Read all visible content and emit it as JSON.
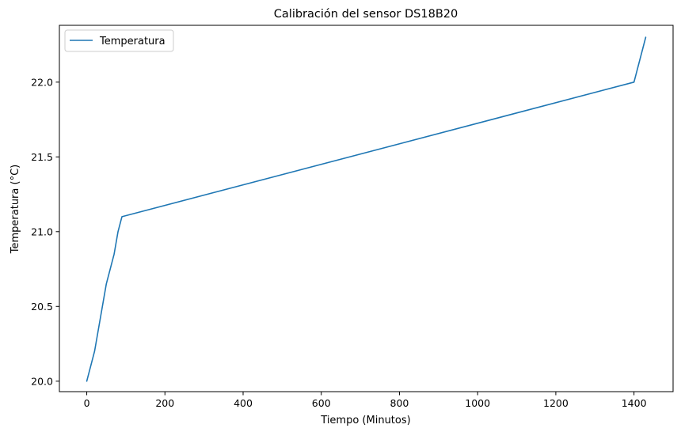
{
  "chart_data": {
    "type": "line",
    "title": "Calibración del sensor DS18B20",
    "xlabel": "Tiempo (Minutos)",
    "ylabel": "Temperatura (°C)",
    "xlim": [
      -70,
      1500
    ],
    "ylim": [
      19.93,
      22.38
    ],
    "xticks": [
      0,
      200,
      400,
      600,
      800,
      1000,
      1200,
      1400
    ],
    "yticks": [
      20.0,
      20.5,
      21.0,
      21.5,
      22.0
    ],
    "xtick_labels": [
      "0",
      "200",
      "400",
      "600",
      "800",
      "1000",
      "1200",
      "1400"
    ],
    "ytick_labels": [
      "20.0",
      "20.5",
      "21.0",
      "21.5",
      "22.0"
    ],
    "grid": false,
    "legend_position": "top-left",
    "series": [
      {
        "name": "Temperatura",
        "color": "#1f77b4",
        "x": [
          0,
          20,
          50,
          70,
          80,
          90,
          1400,
          1430
        ],
        "y": [
          20.0,
          20.2,
          20.65,
          20.85,
          21.0,
          21.1,
          22.0,
          22.3
        ]
      }
    ]
  }
}
